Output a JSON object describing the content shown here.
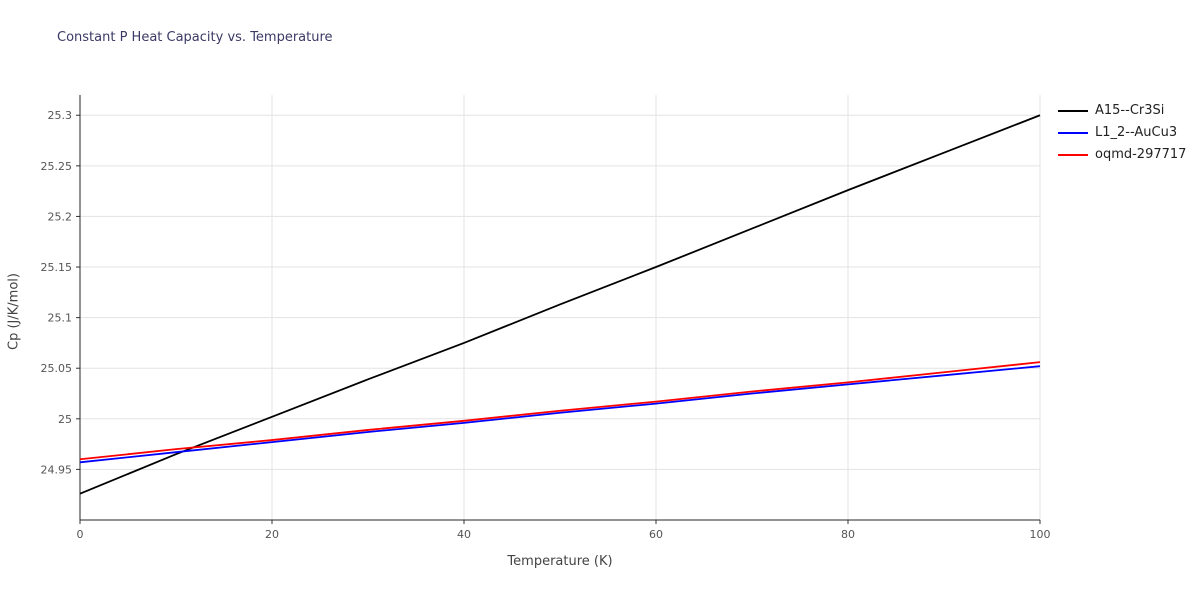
{
  "chart_data": {
    "type": "line",
    "title": "Constant P Heat Capacity vs. Temperature",
    "xlabel": "Temperature (K)",
    "ylabel": "Cp (J/K/mol)",
    "xlim": [
      0,
      100
    ],
    "ylim": [
      24.9,
      25.32
    ],
    "xticks": [
      0,
      20,
      40,
      60,
      80,
      100
    ],
    "yticks": [
      24.95,
      25,
      25.05,
      25.1,
      25.15,
      25.2,
      25.25,
      25.3
    ],
    "grid": true,
    "legend_position": "top-right",
    "x": [
      0,
      10,
      20,
      30,
      40,
      50,
      60,
      70,
      80,
      90,
      100
    ],
    "series": [
      {
        "name": "A15--Cr3Si",
        "color": "#000000",
        "values": [
          24.926,
          24.965,
          25.002,
          25.039,
          25.075,
          25.113,
          25.15,
          25.188,
          25.226,
          25.263,
          25.3
        ]
      },
      {
        "name": "L1_2--AuCu3",
        "color": "#0000ff",
        "values": [
          24.957,
          24.967,
          24.977,
          24.987,
          24.996,
          25.006,
          25.015,
          25.025,
          25.034,
          25.043,
          25.052
        ]
      },
      {
        "name": "oqmd-297717",
        "color": "#ff0000",
        "values": [
          24.96,
          24.97,
          24.979,
          24.989,
          24.998,
          25.008,
          25.017,
          25.027,
          25.036,
          25.046,
          25.056
        ]
      }
    ]
  }
}
